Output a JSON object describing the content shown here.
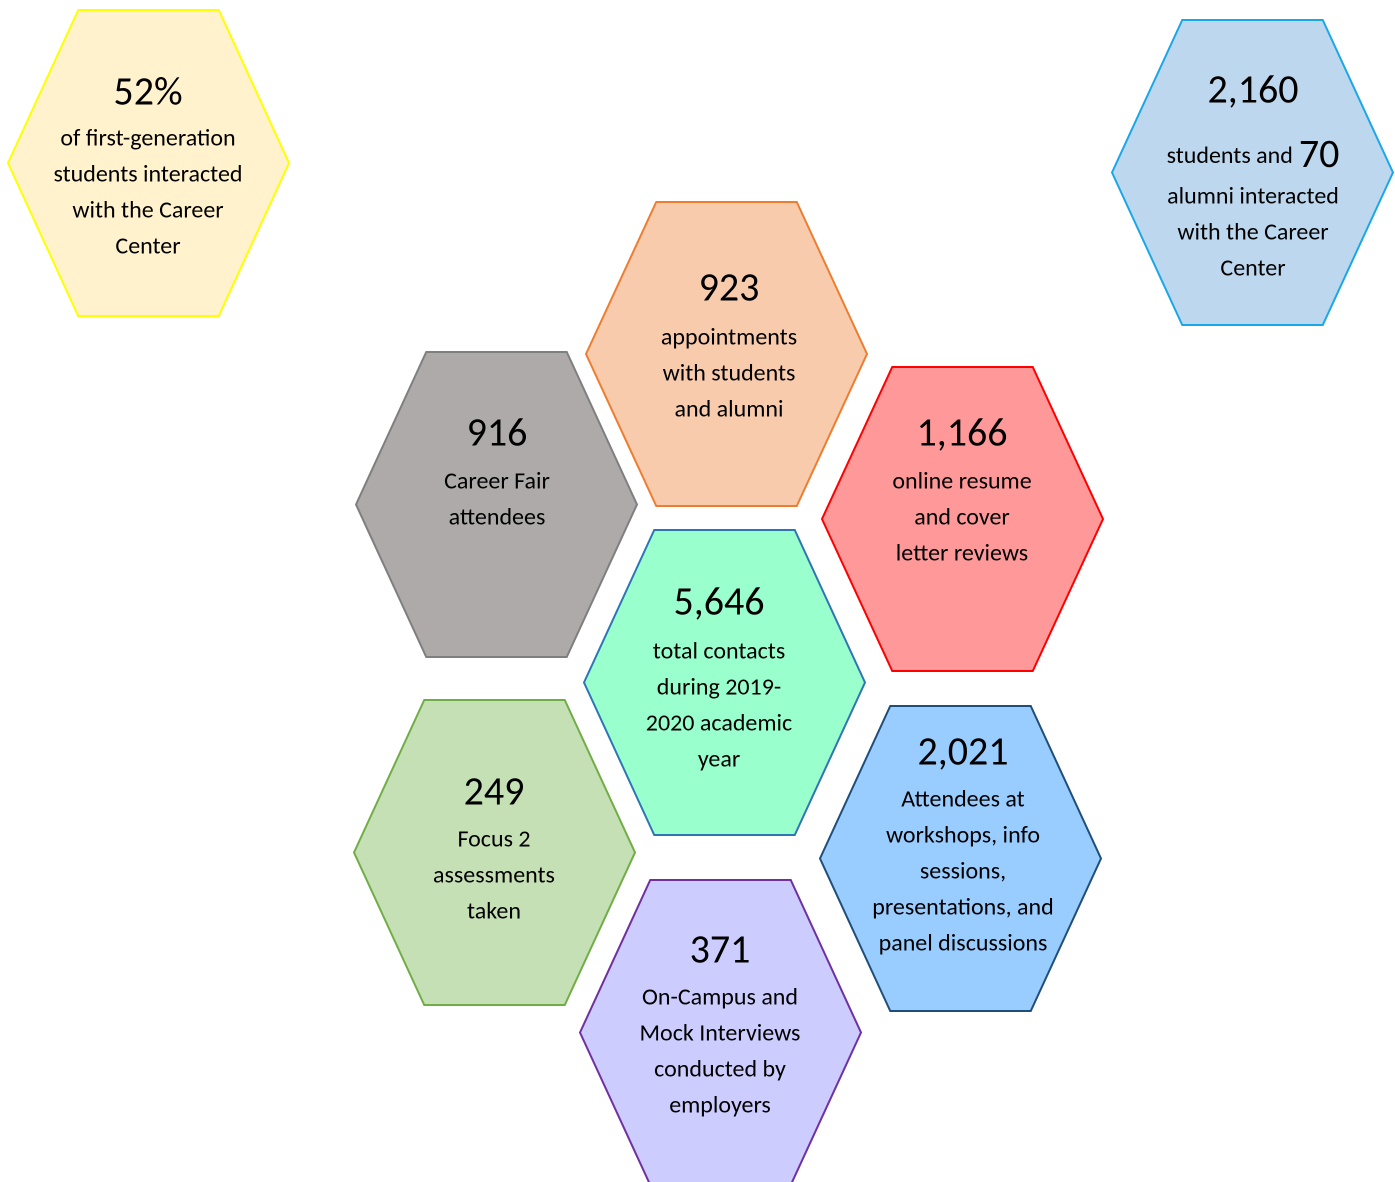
{
  "hexagons": [
    {
      "stat": "52%",
      "lines": [
        "of first-generation",
        "students interacted",
        "with the Career",
        "Center"
      ]
    },
    {
      "stat": "2,160",
      "inline": {
        "text": "students and",
        "stat": "70"
      },
      "lines": [
        "alumni interacted",
        "with the Career",
        "Center"
      ]
    },
    {
      "stat": "923",
      "lines": [
        "appointments",
        "with students",
        "and alumni"
      ]
    },
    {
      "stat": "916",
      "lines": [
        "Career Fair",
        "attendees"
      ]
    },
    {
      "stat": "1,166",
      "lines": [
        "online resume",
        "and cover",
        "letter reviews"
      ]
    },
    {
      "stat": "5,646",
      "lines": [
        "total contacts",
        "during 2019-",
        "2020 academic",
        "year"
      ]
    },
    {
      "stat": "249",
      "lines": [
        "Focus 2",
        "assessments",
        "taken"
      ]
    },
    {
      "stat": "2,021",
      "lines": [
        "Attendees at",
        "workshops, info",
        "sessions,",
        "presentations, and",
        "panel discussions"
      ]
    },
    {
      "stat": "371",
      "lines": [
        "On-Campus and",
        "Mock Interviews",
        "conducted by",
        "employers"
      ]
    }
  ]
}
